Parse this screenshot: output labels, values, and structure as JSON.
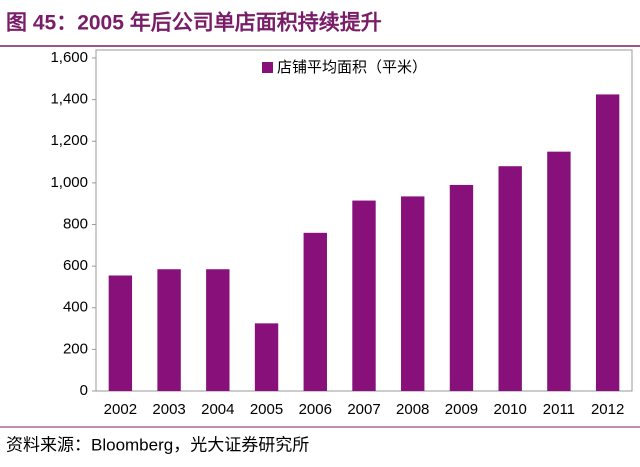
{
  "chart_data": {
    "type": "bar",
    "title": "图 45：2005 年后公司单店面积持续提升",
    "source": "资料来源：Bloomberg，光大证券研究所",
    "categories": [
      "2002",
      "2003",
      "2004",
      "2005",
      "2006",
      "2007",
      "2008",
      "2009",
      "2010",
      "2011",
      "2012"
    ],
    "series": [
      {
        "name": "店铺平均面积（平米）",
        "color": "#87107b",
        "values": [
          555,
          585,
          585,
          325,
          760,
          915,
          935,
          990,
          1080,
          1150,
          1425
        ]
      }
    ],
    "ylim": [
      0,
      1600
    ],
    "yticks": [
      0,
      200,
      400,
      600,
      800,
      {
        "value": 1000,
        "label": "1,000"
      },
      {
        "value": 1200,
        "label": "1,200"
      },
      {
        "value": 1400,
        "label": "1,400"
      },
      {
        "value": 1600,
        "label": "1,600"
      }
    ],
    "grid": false,
    "legend": "top"
  }
}
